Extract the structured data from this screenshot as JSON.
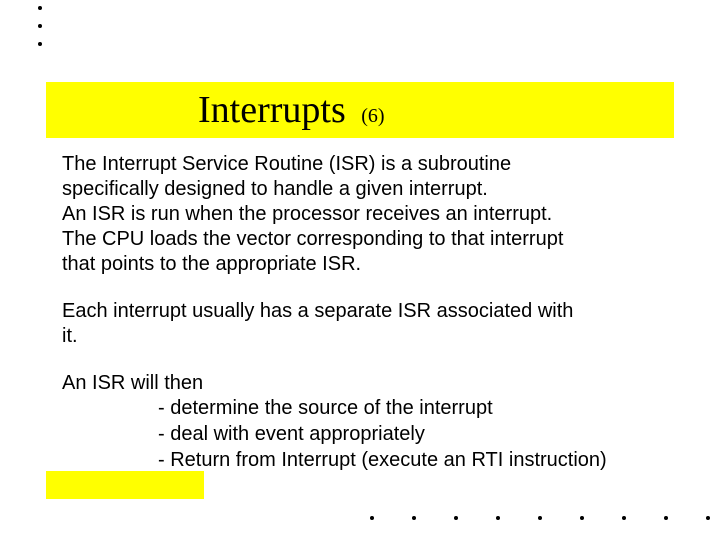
{
  "title": {
    "main": "Interrupts",
    "sub": "(6)"
  },
  "para1_lines": [
    "The Interrupt Service Routine (ISR) is a subroutine",
    "specifically designed to handle a given interrupt.",
    "An ISR is run when the processor receives an interrupt.",
    "The CPU loads the vector corresponding to that interrupt",
    "that points to the appropriate ISR."
  ],
  "para2_lines": [
    "Each interrupt usually has a separate ISR associated with",
    "it."
  ],
  "para3_intro": "An ISR will then",
  "bullets": [
    "- determine the source of the interrupt",
    "- deal with event appropriately",
    "- Return from Interrupt (execute an RTI instruction)"
  ],
  "colors": {
    "title_bg": "#ffff00",
    "bottom_bar": "#ffff00",
    "dot": "#000000",
    "text": "#000000",
    "background": "#ffffff"
  },
  "fonts": {
    "title_family": "Times New Roman",
    "title_size_pt": 28,
    "body_family": "Arial",
    "body_size_pt": 15
  },
  "decorative_dots": {
    "top_count": 3,
    "bottom_count": 9
  }
}
